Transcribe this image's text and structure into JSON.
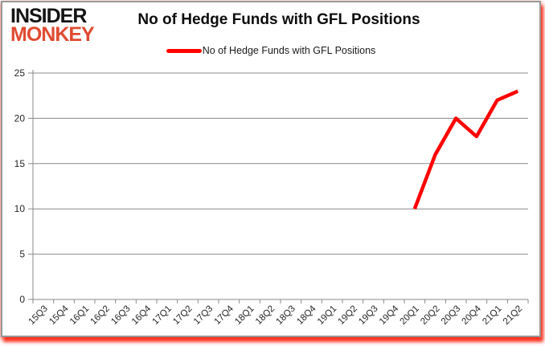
{
  "logo": {
    "line1": "INSIDER",
    "line2": "MONKEY"
  },
  "header": {
    "title": "No of Hedge Funds with GFL Positions"
  },
  "legend": {
    "label": "No of Hedge Funds with GFL Positions"
  },
  "chart_data": {
    "type": "line",
    "title": "No of Hedge Funds with GFL Positions",
    "categories": [
      "15Q3",
      "15Q4",
      "16Q1",
      "16Q2",
      "16Q3",
      "16Q4",
      "17Q1",
      "17Q2",
      "17Q3",
      "17Q4",
      "18Q1",
      "18Q2",
      "18Q3",
      "18Q4",
      "19Q1",
      "19Q2",
      "19Q3",
      "19Q4",
      "20Q1",
      "20Q2",
      "20Q3",
      "20Q4",
      "21Q1",
      "21Q2"
    ],
    "series": [
      {
        "name": "No of Hedge Funds with GFL Positions",
        "color": "#ff0000",
        "values": [
          null,
          null,
          null,
          null,
          null,
          null,
          null,
          null,
          null,
          null,
          null,
          null,
          null,
          null,
          null,
          null,
          null,
          null,
          10,
          16,
          20,
          18,
          22,
          23
        ]
      }
    ],
    "ylim": [
      0,
      25
    ],
    "y_ticks": [
      0,
      5,
      10,
      15,
      20,
      25
    ],
    "grid": true,
    "legend_position": "top"
  },
  "colors": {
    "series_red": "#ff0000",
    "logo_red": "#e04b31",
    "grid_gray": "#898989",
    "axis_gray": "#898989",
    "tick_text": "#262626"
  }
}
